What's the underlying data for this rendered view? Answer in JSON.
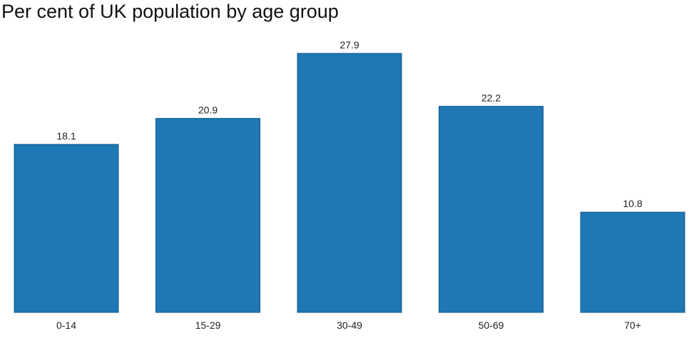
{
  "chart_data": {
    "type": "bar",
    "title": "Per cent of UK population by age group",
    "categories": [
      "0-14",
      "15-29",
      "30-49",
      "50-69",
      "70+"
    ],
    "values": [
      18.1,
      20.9,
      27.9,
      22.2,
      10.8
    ],
    "data_labels": [
      "18.1",
      "20.9",
      "27.9",
      "22.2",
      "10.8"
    ],
    "xlabel": "",
    "ylabel": "",
    "ylim": [
      0,
      30
    ],
    "grid": false,
    "legend": "none",
    "bar_color": "#1f77b4"
  }
}
